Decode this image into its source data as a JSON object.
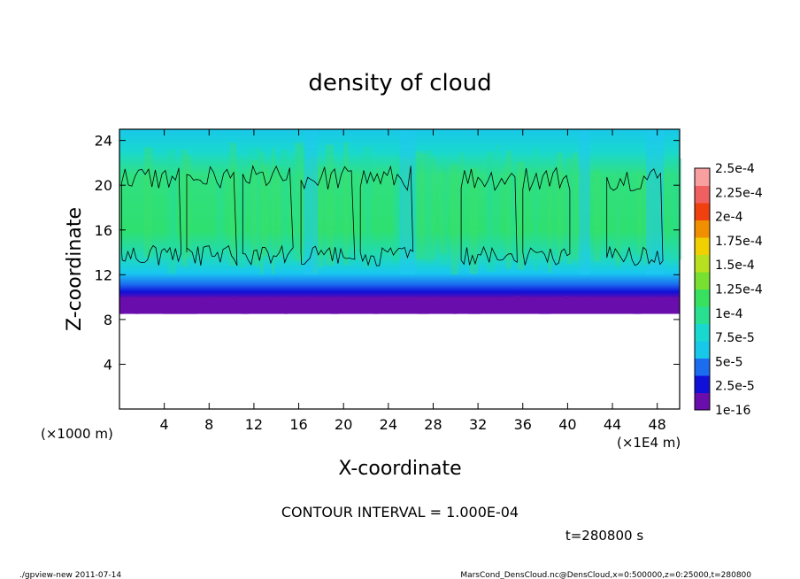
{
  "chart_data": {
    "type": "heatmap",
    "title": "density of cloud",
    "xlabel": "X-coordinate",
    "ylabel": "Z-coordinate",
    "x_unit_left": "(×1000 m)",
    "x_unit_right": "(×1E4 m)",
    "xlim": [
      0,
      50
    ],
    "ylim": [
      0,
      25
    ],
    "xticks": [
      "4",
      "8",
      "12",
      "16",
      "20",
      "24",
      "28",
      "32",
      "36",
      "40",
      "44",
      "48"
    ],
    "yticks": [
      "4",
      "8",
      "12",
      "16",
      "20",
      "24"
    ],
    "colorbar": {
      "labels": [
        "2.5e-4",
        "2.25e-4",
        "2e-4",
        "1.75e-4",
        "1.5e-4",
        "1.25e-4",
        "1e-4",
        "7.5e-5",
        "5e-5",
        "2.5e-5",
        "1e-16"
      ],
      "levels": [
        1e-16,
        2.5e-05,
        5e-05,
        7.5e-05,
        0.0001,
        0.000125,
        0.00015,
        0.000175,
        0.0002,
        0.000225,
        0.00025
      ],
      "colors": [
        "#6a0dad",
        "#1010d8",
        "#1c6cf0",
        "#18c8e8",
        "#19d8d0",
        "#28e090",
        "#38e060",
        "#78e030",
        "#b8e020",
        "#f0d000",
        "#f09000",
        "#f04010",
        "#f06060",
        "#f8a0a0"
      ]
    },
    "cloud_base_km": 8.5,
    "cloud_top_km": 25,
    "contour_level": 0.0001,
    "contour_interval_text": "CONTOUR INTERVAL = 1.000E-04",
    "time_text": "t=280800 s"
  },
  "footer": {
    "left": "./gpview-new   2011-07-14",
    "right": "MarsCond_DensCloud.nc@DensCloud,x=0:500000,z=0:25000,t=280800"
  },
  "colors": {
    "background": "#ffffff",
    "axis": "#000000"
  }
}
